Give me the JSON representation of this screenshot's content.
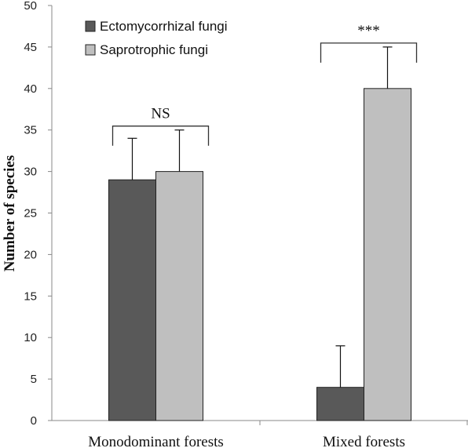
{
  "chart_data": {
    "type": "bar",
    "title": "",
    "xlabel": "",
    "ylabel": "Number of species",
    "ylim": [
      0,
      50
    ],
    "yticks": [
      0,
      5,
      10,
      15,
      20,
      25,
      30,
      35,
      40,
      45,
      50
    ],
    "categories": [
      "Monodominant forests",
      "Mixed forests"
    ],
    "series": [
      {
        "name": "Ectomycorrhizal fungi",
        "values": [
          29,
          4
        ],
        "errors": [
          5,
          5
        ],
        "color": "#595959"
      },
      {
        "name": "Saprotrophic fungi",
        "values": [
          30,
          40
        ],
        "errors": [
          5,
          5
        ],
        "color": "#bfbfbf"
      }
    ],
    "legend_position": "top-left",
    "grid": false,
    "annotations": [
      {
        "category_index": 0,
        "text": "NS"
      },
      {
        "category_index": 1,
        "text": "***"
      }
    ]
  }
}
